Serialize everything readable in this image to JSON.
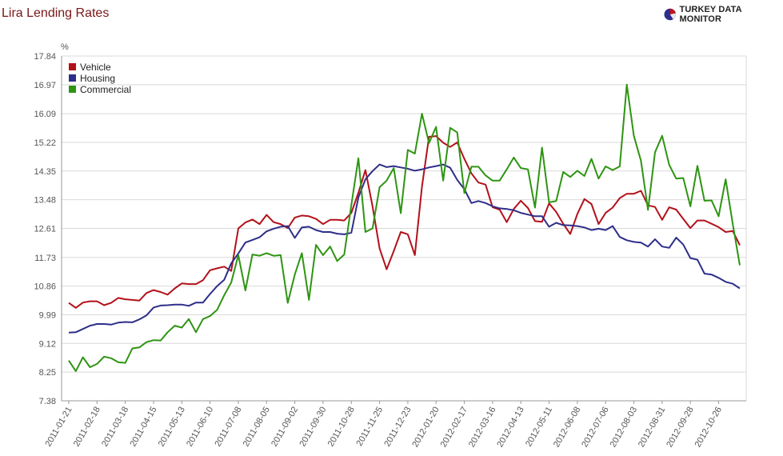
{
  "header": {
    "title": "Lira Lending Rates",
    "brand": "TURKEY DATA MONITOR"
  },
  "colors": {
    "title": "#7a1616",
    "vehicle": "#b2111a",
    "housing": "#2e2e8a",
    "commercial": "#2e9412",
    "grid": "#d9d9d9",
    "axis": "#999999"
  },
  "chart_data": {
    "type": "line",
    "title": "",
    "ylabel": "%",
    "xlabel": "",
    "ylim": [
      7.38,
      17.84
    ],
    "yticks": [
      "7.38",
      "8.25",
      "9.12",
      "9.99",
      "10.86",
      "11.73",
      "12.61",
      "13.48",
      "14.35",
      "15.22",
      "16.09",
      "16.97",
      "17.84"
    ],
    "xtick_labels": [
      "2011-01-21",
      "2011-02-18",
      "2011-03-18",
      "2011-04-15",
      "2011-05-13",
      "2011-06-10",
      "2011-07-08",
      "2011-08-05",
      "2011-09-02",
      "2011-09-30",
      "2011-10-28",
      "2011-11-25",
      "2011-12-23",
      "2012-01-20",
      "2012-02-17",
      "2012-03-16",
      "2012-04-13",
      "2012-05-11",
      "2012-06-08",
      "2012-07-06",
      "2012-08-03",
      "2012-08-31",
      "2012-09-28",
      "2012-10-26"
    ],
    "grid": true,
    "legend_position": "top-left",
    "series": [
      {
        "name": "Vehicle",
        "color": "#b2111a",
        "values": [
          10.35,
          10.2,
          10.36,
          10.4,
          10.4,
          10.28,
          10.35,
          10.5,
          10.46,
          10.44,
          10.42,
          10.65,
          10.74,
          10.68,
          10.6,
          10.79,
          10.94,
          10.92,
          10.92,
          11.04,
          11.34,
          11.4,
          11.45,
          11.32,
          12.61,
          12.79,
          12.88,
          12.74,
          13.02,
          12.8,
          12.74,
          12.62,
          12.94,
          13.0,
          12.98,
          12.9,
          12.74,
          12.87,
          12.87,
          12.85,
          13.08,
          13.69,
          14.38,
          13.28,
          12.0,
          11.37,
          11.92,
          12.5,
          12.43,
          11.8,
          13.88,
          15.39,
          15.41,
          15.21,
          15.08,
          15.22,
          14.72,
          14.28,
          14.0,
          13.94,
          13.25,
          13.18,
          12.8,
          13.2,
          13.45,
          13.23,
          12.83,
          12.81,
          13.37,
          13.11,
          12.75,
          12.44,
          13.05,
          13.5,
          13.35,
          12.74,
          13.08,
          13.24,
          13.53,
          13.66,
          13.66,
          13.75,
          13.31,
          13.26,
          12.87,
          13.25,
          13.18,
          12.9,
          12.62,
          12.85,
          12.85,
          12.75,
          12.65,
          12.5,
          12.53,
          12.1
        ]
      },
      {
        "name": "Housing",
        "color": "#2e2e8a",
        "values": [
          9.45,
          9.46,
          9.56,
          9.66,
          9.71,
          9.71,
          9.69,
          9.75,
          9.77,
          9.76,
          9.85,
          9.97,
          10.21,
          10.27,
          10.28,
          10.3,
          10.3,
          10.26,
          10.36,
          10.36,
          10.62,
          10.86,
          11.05,
          11.55,
          11.85,
          12.18,
          12.26,
          12.34,
          12.52,
          12.6,
          12.66,
          12.68,
          12.32,
          12.64,
          12.66,
          12.56,
          12.5,
          12.5,
          12.45,
          12.43,
          12.48,
          13.55,
          14.1,
          14.35,
          14.55,
          14.47,
          14.5,
          14.46,
          14.42,
          14.36,
          14.4,
          14.46,
          14.5,
          14.55,
          14.45,
          14.08,
          13.8,
          13.38,
          13.44,
          13.38,
          13.28,
          13.22,
          13.2,
          13.16,
          13.08,
          13.03,
          12.98,
          12.98,
          12.66,
          12.78,
          12.71,
          12.7,
          12.68,
          12.64,
          12.56,
          12.6,
          12.56,
          12.68,
          12.35,
          12.25,
          12.2,
          12.18,
          12.06,
          12.28,
          12.06,
          12.02,
          12.33,
          12.12,
          11.71,
          11.66,
          11.24,
          11.21,
          11.11,
          10.99,
          10.93,
          10.79
        ]
      },
      {
        "name": "Commercial",
        "color": "#2e9412",
        "values": [
          8.6,
          8.28,
          8.7,
          8.4,
          8.5,
          8.72,
          8.67,
          8.55,
          8.53,
          8.97,
          9.0,
          9.16,
          9.22,
          9.21,
          9.46,
          9.66,
          9.6,
          9.86,
          9.46,
          9.86,
          9.95,
          10.14,
          10.58,
          10.97,
          11.8,
          10.73,
          11.82,
          11.78,
          11.86,
          11.78,
          11.8,
          10.35,
          11.21,
          11.86,
          10.44,
          12.11,
          11.8,
          12.06,
          11.62,
          11.82,
          13.32,
          14.74,
          12.5,
          12.61,
          13.86,
          14.06,
          14.44,
          13.07,
          14.99,
          14.88,
          16.09,
          15.2,
          15.69,
          14.06,
          15.66,
          15.52,
          13.68,
          14.48,
          14.48,
          14.22,
          14.06,
          14.06,
          14.4,
          14.76,
          14.44,
          14.4,
          13.24,
          15.06,
          13.4,
          13.44,
          14.32,
          14.17,
          14.36,
          14.2,
          14.72,
          14.12,
          14.49,
          14.38,
          14.49,
          16.97,
          15.42,
          14.66,
          13.17,
          14.92,
          15.42,
          14.54,
          14.12,
          14.14,
          13.28,
          14.51,
          13.45,
          13.46,
          12.98,
          14.1,
          12.74,
          11.49
        ]
      }
    ]
  }
}
